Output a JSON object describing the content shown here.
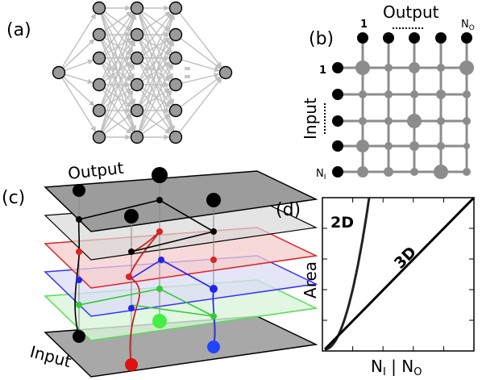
{
  "panels": {
    "a": {
      "label": "(a)"
    },
    "b": {
      "label": "(b)",
      "output_title": "Output",
      "input_title": "Input",
      "col_first": "1",
      "col_last": "N",
      "col_last_sub": "O",
      "row_first": "1",
      "row_last": "N",
      "row_last_sub": "I"
    },
    "c": {
      "label": "(c)",
      "output_title": "Output",
      "input_title": "Input"
    },
    "d": {
      "label": "(d)",
      "ylabel": "Area",
      "xlabel_main": "N",
      "xlabel_sub1": "I",
      "xlabel_sep": " | N",
      "xlabel_sub2": "O",
      "curve_2d_label": "2D",
      "curve_3d_label": "3D"
    }
  },
  "chart_data": {
    "type": "line",
    "xlabel": "NI | NO",
    "ylabel": "Area",
    "series": [
      {
        "name": "2D",
        "shape": "quadratic"
      },
      {
        "name": "3D",
        "shape": "linear"
      }
    ],
    "ticks": {
      "x_count": 4,
      "y_count": 4
    },
    "tick_labels_shown": false
  }
}
